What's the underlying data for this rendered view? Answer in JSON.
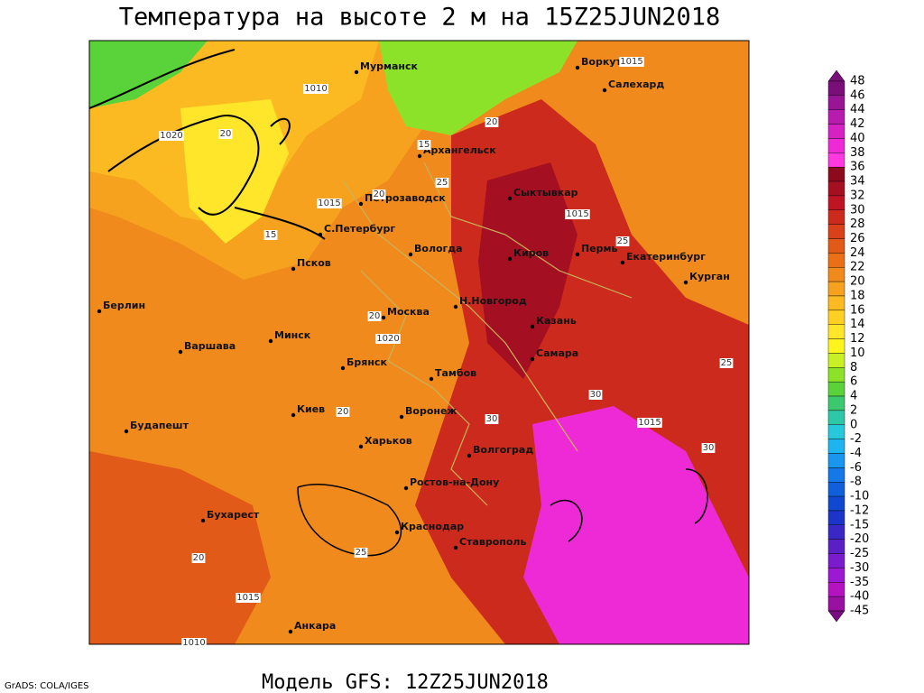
{
  "title": "Температура на высоте 2 м на 15Z25JUN2018",
  "footer": "Модель GFS: 12Z25JUN2018",
  "credit": "GrADS: COLA/IGES",
  "cities": [
    "Мурманск",
    "Воркута",
    "Салехард",
    "Архангельск",
    "Сыктывкар",
    "Петрозаводск",
    "С.Петербург",
    "Вологда",
    "Киров",
    "Пермь",
    "Екатеринбург",
    "Курган",
    "Псков",
    "Берлин",
    "Москва",
    "Н.Новгород",
    "Казань",
    "Варшава",
    "Минск",
    "Самара",
    "Брянск",
    "Тамбов",
    "Киев",
    "Воронеж",
    "Будапешт",
    "Харьков",
    "Волгоград",
    "Ростов-на-Дону",
    "Бухарест",
    "Краснодар",
    "Ставрополь",
    "Анкара"
  ],
  "contour_labels": [
    1010,
    1020,
    1015,
    1015,
    1015,
    1020,
    1015,
    1015,
    1010,
    20,
    20,
    20,
    25,
    25,
    25,
    30,
    30,
    20,
    20,
    15,
    15,
    25,
    20,
    30
  ],
  "colorbar": {
    "labels": [
      48,
      46,
      44,
      42,
      40,
      38,
      36,
      34,
      32,
      30,
      28,
      26,
      24,
      22,
      20,
      18,
      16,
      14,
      12,
      10,
      8,
      6,
      4,
      2,
      0,
      -2,
      -4,
      -6,
      -8,
      -10,
      -12,
      -15,
      -20,
      -25,
      -30,
      -35,
      -40,
      -45
    ],
    "colors": [
      "#7a0f7a",
      "#9a1596",
      "#b81cae",
      "#d622c2",
      "#ee2ad6",
      "#ff38e0",
      "#8c0a1e",
      "#a50f22",
      "#be1424",
      "#cc2a1c",
      "#d8411a",
      "#e25a18",
      "#ea7018",
      "#f08a1c",
      "#f6a21e",
      "#fbba22",
      "#ffd024",
      "#ffe62a",
      "#fff51e",
      "#c8f024",
      "#8ce228",
      "#5ad23a",
      "#3cc86e",
      "#2ec8a8",
      "#28c8dc",
      "#1eb4f0",
      "#1a96ee",
      "#1478e6",
      "#1060dc",
      "#1048d0",
      "#1c34c8",
      "#3a28c4",
      "#5a20c4",
      "#7a1ccc",
      "#9c18d2",
      "#b414c0",
      "#9a10a0",
      "#7a0c82"
    ]
  }
}
